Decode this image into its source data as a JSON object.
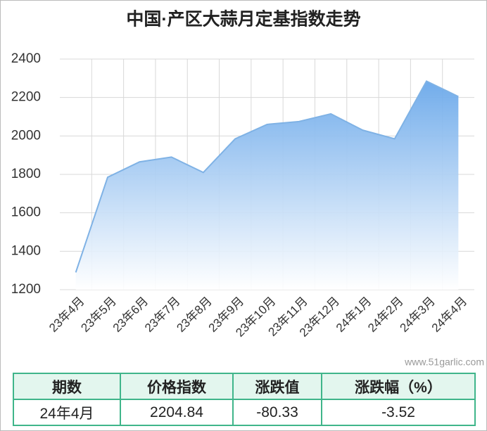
{
  "chart_data": {
    "type": "area",
    "title": "中国·产区大蒜月定基指数走势",
    "categories": [
      "23年4月",
      "23年5月",
      "23年6月",
      "23年7月",
      "23年8月",
      "23年9月",
      "23年10月",
      "23年11月",
      "23年12月",
      "24年1月",
      "24年2月",
      "24年3月",
      "24年4月"
    ],
    "values": [
      1290,
      1785,
      1865,
      1890,
      1810,
      1985,
      2060,
      2075,
      2115,
      2030,
      1985,
      2285.17,
      2204.84
    ],
    "color": "#7fb2e5",
    "ylim": [
      1200,
      2400
    ],
    "yticks": [
      1200,
      1400,
      1600,
      1800,
      2000,
      2200,
      2400
    ],
    "grid": true
  },
  "watermark": "www.51garlic.com",
  "table": {
    "header": [
      "期数",
      "价格指数",
      "涨跌值",
      "涨跌幅（%）"
    ],
    "rows": [
      [
        "24年4月",
        "2204.84",
        "-80.33",
        "-3.52"
      ]
    ]
  }
}
